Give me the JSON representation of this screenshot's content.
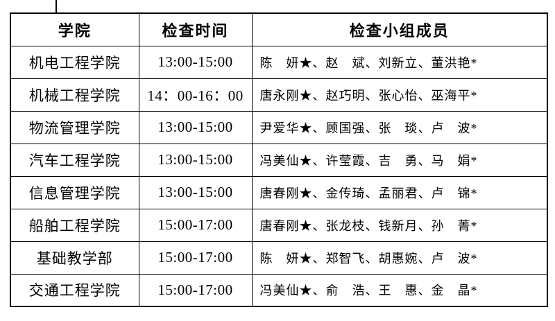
{
  "page": {
    "background_color": "#ffffff",
    "border_color": "#000000",
    "text_color": "#000000"
  },
  "table": {
    "headers": {
      "college": "学院",
      "time": "检查时间",
      "members": "检查小组成员"
    },
    "legend_icons": {
      "leader_mark": "★",
      "note_mark": "*"
    },
    "rows": [
      {
        "college": "机电工程学院",
        "time": "13:00-15:00",
        "members": "陈　妍★、赵　斌、刘新立、董洪艳*"
      },
      {
        "college": "机械工程学院",
        "time": "14：00-16：00",
        "members": "唐永刚★、赵巧明、张心怡、巫海平*"
      },
      {
        "college": "物流管理学院",
        "time": "13:00-15:00",
        "members": "尹爱华★、顾国强、张　琰、卢　波*"
      },
      {
        "college": "汽车工程学院",
        "time": "13:00-15:00",
        "members": "冯美仙★、许莹霞、吉　勇、马　娟*"
      },
      {
        "college": "信息管理学院",
        "time": "13:00-15:00",
        "members": "唐春刚★、金传琦、孟丽君、卢　锦*"
      },
      {
        "college": "船舶工程学院",
        "time": "15:00-17:00",
        "members": "唐春刚★、张龙枝、钱新月、孙　菁*"
      },
      {
        "college": "基础教学部",
        "time": "15:00-17:00",
        "members": "陈　妍★、郑智飞、胡惠婉、卢　波*"
      },
      {
        "college": "交通工程学院",
        "time": "15:00-17:00",
        "members": "冯美仙★、俞　浩、王　惠、金　晶*"
      }
    ]
  }
}
